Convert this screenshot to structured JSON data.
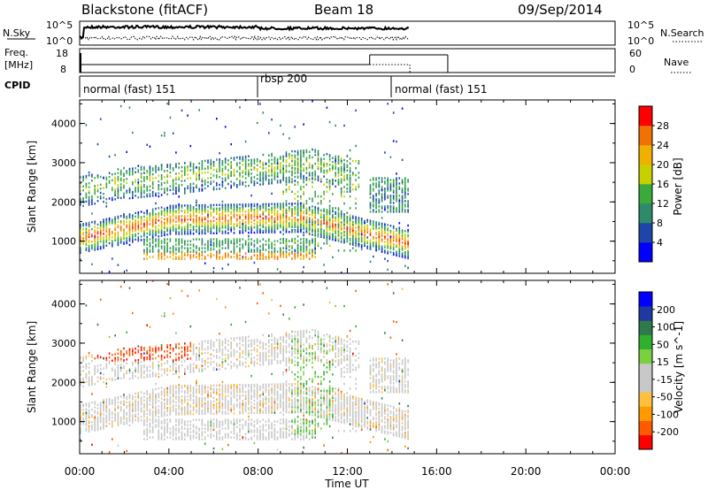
{
  "header": {
    "title": "Blackstone (fitACF)",
    "beam": "Beam 18",
    "date": "09/Sep/2014"
  },
  "noise_panel": {
    "left_label": "N.Sky",
    "right_label": "N.Search",
    "tick_top": "10^5",
    "tick_bottom": "10^0"
  },
  "freq_panel": {
    "left_label": "Freq.",
    "left_unit": "[MHz]",
    "right_label": "Nave",
    "freq_ticks": [
      "18",
      "8"
    ],
    "nave_ticks": [
      "60",
      "0"
    ],
    "freq_mhz": [
      {
        "start_h": 0.0,
        "end_h": 14.8,
        "value": 10.5
      }
    ],
    "nave": [
      {
        "start_h": 0.0,
        "end_h": 13.0,
        "value": 16
      },
      {
        "start_h": 13.0,
        "end_h": 16.5,
        "value": 42
      }
    ]
  },
  "cpid": {
    "label": "CPID",
    "segments": [
      {
        "label": "normal (fast) 151",
        "start_h": 0.0,
        "end_h": 8.0
      },
      {
        "label": "rbsp 200",
        "start_h": 8.0,
        "end_h": 14.0
      },
      {
        "label": "normal (fast) 151",
        "start_h": 14.0,
        "end_h": 24.0
      }
    ]
  },
  "colors": {
    "power_scale": [
      "#0000ff",
      "#1e46aa",
      "#2f8a6a",
      "#3aaa3a",
      "#c8d000",
      "#f0b000",
      "#f07000",
      "#ff0000"
    ],
    "velocity_scale": [
      "#ff0000",
      "#ff5a00",
      "#ff9a00",
      "#ffc040",
      "#c8c8c8",
      "#c8c8c8",
      "#7ad040",
      "#2fb02f",
      "#2f7a4a",
      "#1e3aa0",
      "#0000ff"
    ],
    "velocity_gray": "#c8c8c8"
  },
  "chart_data": [
    {
      "type": "heatmap",
      "name": "power",
      "xlabel": "",
      "ylabel": "Slant Range [km]",
      "xlim_hours": [
        0,
        24
      ],
      "ylim_km": [
        180,
        4600
      ],
      "yticks": [
        "1000",
        "2000",
        "3000",
        "4000"
      ],
      "colorbar": {
        "label": "Power [dB]",
        "ticks": [
          "28",
          "24",
          "20",
          "16",
          "12",
          "8",
          "4"
        ],
        "range": [
          0,
          32
        ]
      },
      "data_end_h": 14.8,
      "echo_features": [
        {
          "feature": "lower ionospheric band",
          "range_km": [
            1000,
            1800
          ],
          "time_h": [
            0,
            12.8
          ],
          "power_db": [
            12,
            28
          ]
        },
        {
          "feature": "upper ionospheric band",
          "range_km": [
            2000,
            3200
          ],
          "time_h": [
            0,
            12.0
          ],
          "power_db": [
            4,
            20
          ]
        },
        {
          "feature": "near-range band",
          "range_km": [
            500,
            1100
          ],
          "time_h": [
            2.8,
            10.5
          ],
          "power_db": [
            8,
            28
          ]
        },
        {
          "feature": "late band",
          "range_km": [
            1800,
            2600
          ],
          "time_h": [
            13.0,
            14.8
          ],
          "power_db": [
            4,
            16
          ]
        }
      ]
    },
    {
      "type": "heatmap",
      "name": "velocity",
      "xlabel": "Time UT",
      "ylabel": "Slant Range [km]",
      "xlim_hours": [
        0,
        24
      ],
      "ylim_km": [
        180,
        4600
      ],
      "xticks": [
        "00:00",
        "04:00",
        "08:00",
        "12:00",
        "16:00",
        "20:00",
        "00:00"
      ],
      "yticks": [
        "1000",
        "2000",
        "3000",
        "4000"
      ],
      "colorbar": {
        "label": "Velocity [m s^-1]",
        "ticks": [
          "200",
          "100",
          "50",
          "15",
          "-15",
          "-50",
          "-100",
          "-200"
        ],
        "range": [
          -250,
          250
        ]
      },
      "data_end_h": 14.8,
      "echo_features": [
        {
          "feature": "ground scatter",
          "velocity_ms": [
            -15,
            15
          ],
          "range_km": [
            500,
            3100
          ],
          "time_h": [
            0,
            14.8
          ]
        },
        {
          "feature": "receding echoes",
          "velocity_ms": [
            -300,
            -50
          ],
          "range_km": [
            2600,
            3200
          ],
          "time_h": [
            0.5,
            5.0
          ]
        },
        {
          "feature": "approaching echoes",
          "velocity_ms": [
            15,
            100
          ],
          "range_km": [
            600,
            3100
          ],
          "time_h": [
            9.5,
            11.5
          ]
        }
      ]
    }
  ]
}
